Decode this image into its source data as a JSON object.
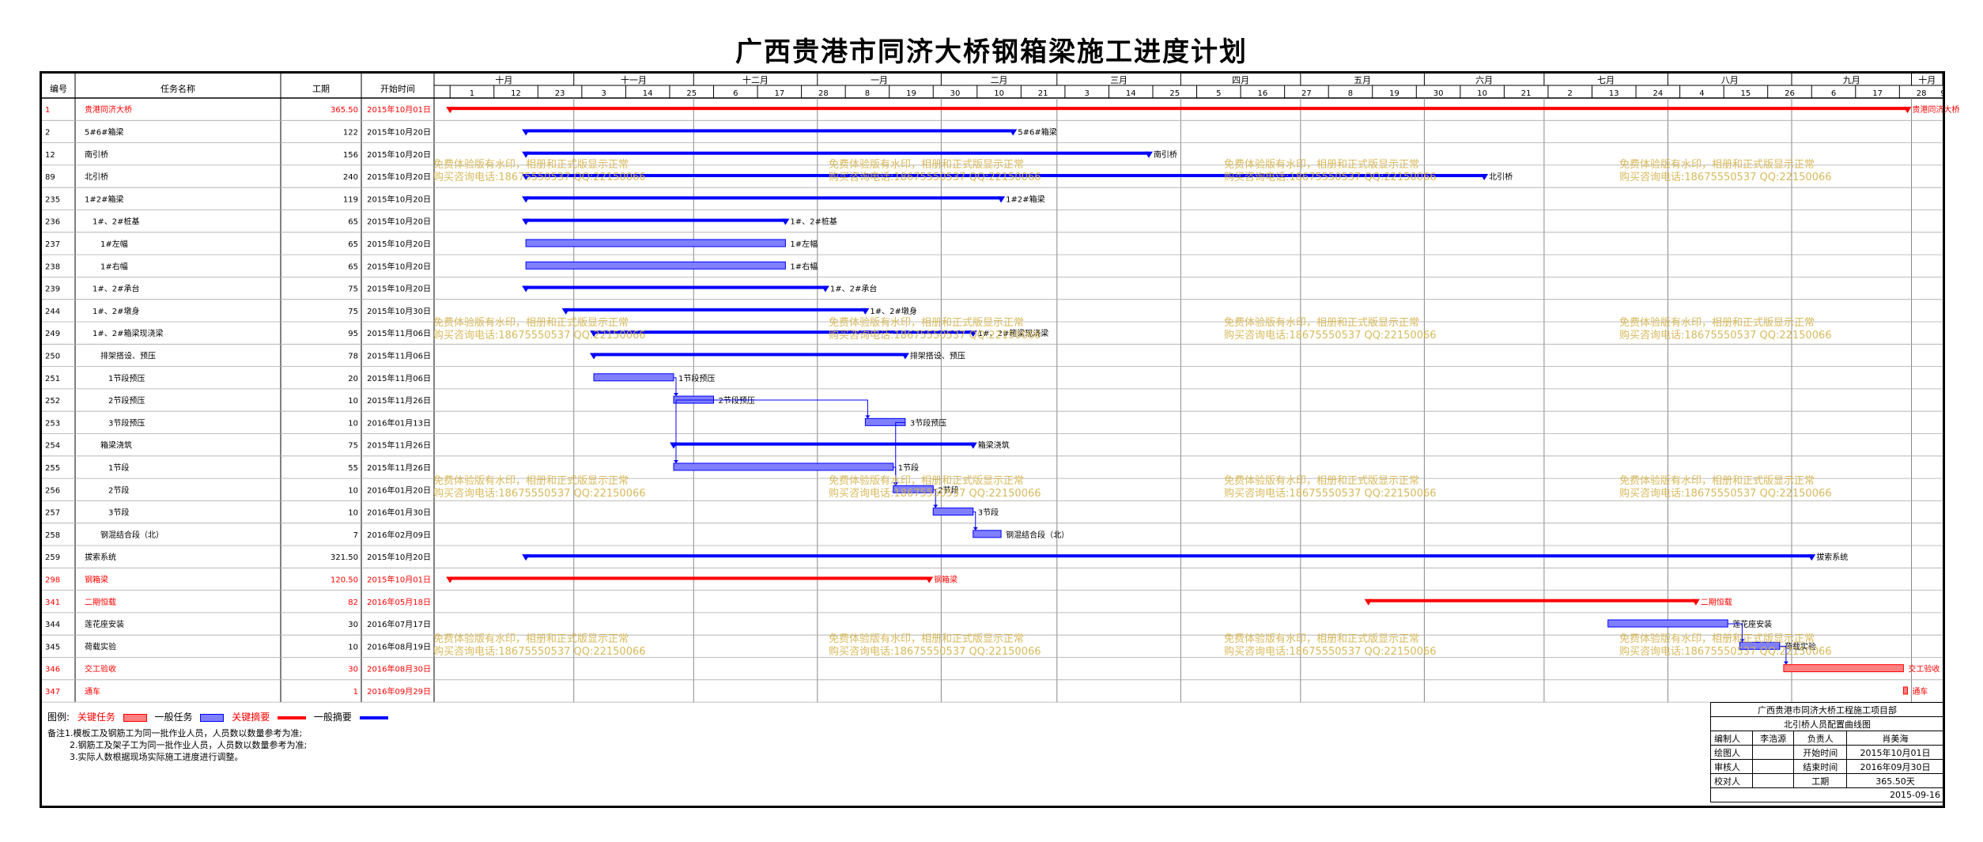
{
  "title": "广西贵港市同济大桥钢箱梁施工进度计划",
  "colors": {
    "critical": "#ff0000",
    "normal": "#0000ff",
    "bar_fill": "#8080ff",
    "critical_fill": "#ff8080",
    "watermark": "#d4b24a"
  },
  "table_headers": {
    "id": "编号",
    "name": "任务名称",
    "duration": "工期",
    "start": "开始时间"
  },
  "timescale": {
    "months": [
      {
        "label": "十月",
        "start": "2015-09-27",
        "end": "2015-11-01"
      },
      {
        "label": "十一月",
        "start": "2015-11-01",
        "end": "2015-12-01"
      },
      {
        "label": "十二月",
        "start": "2015-12-01",
        "end": "2016-01-01"
      },
      {
        "label": "一月",
        "start": "2016-01-01",
        "end": "2016-02-01"
      },
      {
        "label": "二月",
        "start": "2016-02-01",
        "end": "2016-03-01"
      },
      {
        "label": "三月",
        "start": "2016-03-01",
        "end": "2016-04-01"
      },
      {
        "label": "四月",
        "start": "2016-04-01",
        "end": "2016-05-01"
      },
      {
        "label": "五月",
        "start": "2016-05-01",
        "end": "2016-06-01"
      },
      {
        "label": "六月",
        "start": "2016-06-01",
        "end": "2016-07-01"
      },
      {
        "label": "七月",
        "start": "2016-07-01",
        "end": "2016-08-01"
      },
      {
        "label": "八月",
        "start": "2016-08-01",
        "end": "2016-09-01"
      },
      {
        "label": "九月",
        "start": "2016-09-01",
        "end": "2016-10-01"
      },
      {
        "label": "十月",
        "start": "2016-10-01",
        "end": "2016-10-13"
      }
    ],
    "ticks": [
      {
        "label": "1",
        "date": "2015-10-01"
      },
      {
        "label": "12",
        "date": "2015-10-12"
      },
      {
        "label": "23",
        "date": "2015-10-23"
      },
      {
        "label": "3",
        "date": "2015-11-03"
      },
      {
        "label": "14",
        "date": "2015-11-14"
      },
      {
        "label": "25",
        "date": "2015-11-25"
      },
      {
        "label": "6",
        "date": "2015-12-06"
      },
      {
        "label": "17",
        "date": "2015-12-17"
      },
      {
        "label": "28",
        "date": "2015-12-28"
      },
      {
        "label": "8",
        "date": "2016-01-08"
      },
      {
        "label": "19",
        "date": "2016-01-19"
      },
      {
        "label": "30",
        "date": "2016-01-30"
      },
      {
        "label": "10",
        "date": "2016-02-10"
      },
      {
        "label": "21",
        "date": "2016-02-21"
      },
      {
        "label": "3",
        "date": "2016-03-03"
      },
      {
        "label": "14",
        "date": "2016-03-14"
      },
      {
        "label": "25",
        "date": "2016-03-25"
      },
      {
        "label": "5",
        "date": "2016-04-05"
      },
      {
        "label": "16",
        "date": "2016-04-16"
      },
      {
        "label": "27",
        "date": "2016-04-27"
      },
      {
        "label": "8",
        "date": "2016-05-08"
      },
      {
        "label": "19",
        "date": "2016-05-19"
      },
      {
        "label": "30",
        "date": "2016-05-30"
      },
      {
        "label": "10",
        "date": "2016-06-10"
      },
      {
        "label": "21",
        "date": "2016-06-21"
      },
      {
        "label": "2",
        "date": "2016-07-02"
      },
      {
        "label": "13",
        "date": "2016-07-13"
      },
      {
        "label": "24",
        "date": "2016-07-24"
      },
      {
        "label": "4",
        "date": "2016-08-04"
      },
      {
        "label": "15",
        "date": "2016-08-15"
      },
      {
        "label": "26",
        "date": "2016-08-26"
      },
      {
        "label": "6",
        "date": "2016-09-06"
      },
      {
        "label": "17",
        "date": "2016-09-17"
      },
      {
        "label": "28",
        "date": "2016-09-28"
      },
      {
        "label": "9",
        "date": "2016-10-09"
      }
    ]
  },
  "chart_data": {
    "type": "gantt",
    "tasks": [
      {
        "id": "1",
        "name": "贵港同济大桥",
        "indent": 0,
        "duration": "365.50",
        "start_label": "2015年10月01日",
        "start": "2015-10-01",
        "end": "2016-09-30",
        "kind": "summary",
        "critical": true,
        "label": "贵港同济大桥"
      },
      {
        "id": "2",
        "name": "5#6#箱梁",
        "indent": 0,
        "duration": "122",
        "start_label": "2015年10月20日",
        "start": "2015-10-20",
        "end": "2016-02-19",
        "kind": "summary",
        "critical": false,
        "label": "5#6#箱梁"
      },
      {
        "id": "12",
        "name": "南引桥",
        "indent": 0,
        "duration": "156",
        "start_label": "2015年10月20日",
        "start": "2015-10-20",
        "end": "2016-03-24",
        "kind": "summary",
        "critical": false,
        "label": "南引桥"
      },
      {
        "id": "89",
        "name": "北引桥",
        "indent": 0,
        "duration": "240",
        "start_label": "2015年10月20日",
        "start": "2015-10-20",
        "end": "2016-06-16",
        "kind": "summary",
        "critical": false,
        "label": "北引桥"
      },
      {
        "id": "235",
        "name": "1#2#箱梁",
        "indent": 0,
        "duration": "119",
        "start_label": "2015年10月20日",
        "start": "2015-10-20",
        "end": "2016-02-16",
        "kind": "summary",
        "critical": false,
        "label": "1#2#箱梁"
      },
      {
        "id": "236",
        "name": "1#、2#桩基",
        "indent": 1,
        "duration": "65",
        "start_label": "2015年10月20日",
        "start": "2015-10-20",
        "end": "2015-12-24",
        "kind": "summary",
        "critical": false,
        "label": "1#、2#桩基"
      },
      {
        "id": "237",
        "name": "1#左幅",
        "indent": 2,
        "duration": "65",
        "start_label": "2015年10月20日",
        "start": "2015-10-20",
        "end": "2015-12-24",
        "kind": "task",
        "critical": false,
        "label": "1#左幅"
      },
      {
        "id": "238",
        "name": "1#右幅",
        "indent": 2,
        "duration": "65",
        "start_label": "2015年10月20日",
        "start": "2015-10-20",
        "end": "2015-12-24",
        "kind": "task",
        "critical": false,
        "label": "1#右幅"
      },
      {
        "id": "239",
        "name": "1#、2#承台",
        "indent": 1,
        "duration": "75",
        "start_label": "2015年10月20日",
        "start": "2015-10-20",
        "end": "2016-01-03",
        "kind": "summary",
        "critical": false,
        "label": "1#、2#承台"
      },
      {
        "id": "244",
        "name": "1#、2#墩身",
        "indent": 1,
        "duration": "75",
        "start_label": "2015年10月30日",
        "start": "2015-10-30",
        "end": "2016-01-13",
        "kind": "summary",
        "critical": false,
        "label": "1#、2#墩身"
      },
      {
        "id": "249",
        "name": "1#、2#箱梁现浇梁",
        "indent": 1,
        "duration": "95",
        "start_label": "2015年11月06日",
        "start": "2015-11-06",
        "end": "2016-02-09",
        "kind": "summary",
        "critical": false,
        "label": "1#、2#箱梁现浇梁"
      },
      {
        "id": "250",
        "name": "排架搭设、预压",
        "indent": 2,
        "duration": "78",
        "start_label": "2015年11月06日",
        "start": "2015-11-06",
        "end": "2016-01-23",
        "kind": "summary",
        "critical": false,
        "label": "排架搭设、预压"
      },
      {
        "id": "251",
        "name": "1节段预压",
        "indent": 3,
        "duration": "20",
        "start_label": "2015年11月06日",
        "start": "2015-11-06",
        "end": "2015-11-26",
        "kind": "task",
        "critical": false,
        "label": "1节段预压"
      },
      {
        "id": "252",
        "name": "2节段预压",
        "indent": 3,
        "duration": "10",
        "start_label": "2015年11月26日",
        "start": "2015-11-26",
        "end": "2015-12-06",
        "kind": "task",
        "critical": false,
        "label": "2节段预压"
      },
      {
        "id": "253",
        "name": "3节段预压",
        "indent": 3,
        "duration": "10",
        "start_label": "2016年01月13日",
        "start": "2016-01-13",
        "end": "2016-01-23",
        "kind": "task",
        "critical": false,
        "label": "3节段预压"
      },
      {
        "id": "254",
        "name": "箱梁浇筑",
        "indent": 2,
        "duration": "75",
        "start_label": "2015年11月26日",
        "start": "2015-11-26",
        "end": "2016-02-09",
        "kind": "summary",
        "critical": false,
        "label": "箱梁浇筑"
      },
      {
        "id": "255",
        "name": "1节段",
        "indent": 3,
        "duration": "55",
        "start_label": "2015年11月26日",
        "start": "2015-11-26",
        "end": "2016-01-20",
        "kind": "task",
        "critical": false,
        "label": "1节段"
      },
      {
        "id": "256",
        "name": "2节段",
        "indent": 3,
        "duration": "10",
        "start_label": "2016年01月20日",
        "start": "2016-01-20",
        "end": "2016-01-30",
        "kind": "task",
        "critical": false,
        "label": "2节段"
      },
      {
        "id": "257",
        "name": "3节段",
        "indent": 3,
        "duration": "10",
        "start_label": "2016年01月30日",
        "start": "2016-01-30",
        "end": "2016-02-09",
        "kind": "task",
        "critical": false,
        "label": "3节段"
      },
      {
        "id": "258",
        "name": "钢混结合段（北）",
        "indent": 2,
        "duration": "7",
        "start_label": "2016年02月09日",
        "start": "2016-02-09",
        "end": "2016-02-16",
        "kind": "task",
        "critical": false,
        "label": "钢混结合段（北）"
      },
      {
        "id": "259",
        "name": "拔索系统",
        "indent": 0,
        "duration": "321.50",
        "start_label": "2015年10月20日",
        "start": "2015-10-20",
        "end": "2016-09-06",
        "kind": "summary",
        "critical": false,
        "label": "拔索系统"
      },
      {
        "id": "298",
        "name": "钢箱梁",
        "indent": 0,
        "duration": "120.50",
        "start_label": "2015年10月01日",
        "start": "2015-10-01",
        "end": "2016-01-29",
        "kind": "summary",
        "critical": true,
        "label": "钢箱梁"
      },
      {
        "id": "341",
        "name": "二期恒载",
        "indent": 0,
        "duration": "82",
        "start_label": "2016年05月18日",
        "start": "2016-05-18",
        "end": "2016-08-08",
        "kind": "summary",
        "critical": true,
        "label": "二期恒载"
      },
      {
        "id": "344",
        "name": "莲花座安装",
        "indent": 0,
        "duration": "30",
        "start_label": "2016年07月17日",
        "start": "2016-07-17",
        "end": "2016-08-16",
        "kind": "task",
        "critical": false,
        "label": "莲花座安装"
      },
      {
        "id": "345",
        "name": "荷载实验",
        "indent": 0,
        "duration": "10",
        "start_label": "2016年08月19日",
        "start": "2016-08-19",
        "end": "2016-08-29",
        "kind": "task",
        "critical": false,
        "label": "荷载实验"
      },
      {
        "id": "346",
        "name": "交工验收",
        "indent": 0,
        "duration": "30",
        "start_label": "2016年08月30日",
        "start": "2016-08-30",
        "end": "2016-09-29",
        "kind": "task",
        "critical": true,
        "label": "交工验收"
      },
      {
        "id": "347",
        "name": "通车",
        "indent": 0,
        "duration": "1",
        "start_label": "2016年09月29日",
        "start": "2016-09-29",
        "end": "2016-09-30",
        "kind": "task",
        "critical": true,
        "label": "通车"
      }
    ],
    "links": [
      {
        "from": "251",
        "to": "252"
      },
      {
        "from": "252",
        "to": "253"
      },
      {
        "from": "252",
        "to": "255"
      },
      {
        "from": "255",
        "to": "256"
      },
      {
        "from": "253",
        "to": "256"
      },
      {
        "from": "256",
        "to": "257"
      },
      {
        "from": "257",
        "to": "258"
      },
      {
        "from": "344",
        "to": "345"
      },
      {
        "from": "345",
        "to": "346"
      }
    ]
  },
  "watermark": {
    "line1": "免费体验版有水印，相册和正式版显示正常",
    "line2": "购买咨询电话:18675550537 QQ:22150066"
  },
  "legend": {
    "label": "图例:",
    "critical_task": "关键任务",
    "normal_task": "一般任务",
    "critical_summary": "关键摘要",
    "normal_summary": "一般摘要"
  },
  "notes": [
    "备注1.模板工及钢筋工为同一批作业人员，人员数以数量参考为准;",
    "2.钢筋工及架子工为同一批作业人员，人员数以数量参考为准;",
    "3.实际人数根据现场实际施工进度进行调整。"
  ],
  "title_block": {
    "org": "广西贵港市同济大桥工程施工项目部",
    "doc": "北引桥人员配置曲线图",
    "rows": [
      [
        "编制人",
        "李浩源",
        "负责人",
        "肖美海"
      ],
      [
        "绘图人",
        "",
        "开始时间",
        "2015年10月01日"
      ],
      [
        "审核人",
        "",
        "结束时间",
        "2016年09月30日"
      ],
      [
        "校对人",
        "",
        "工期",
        "365.50天"
      ]
    ],
    "date": "2015-09-16"
  }
}
